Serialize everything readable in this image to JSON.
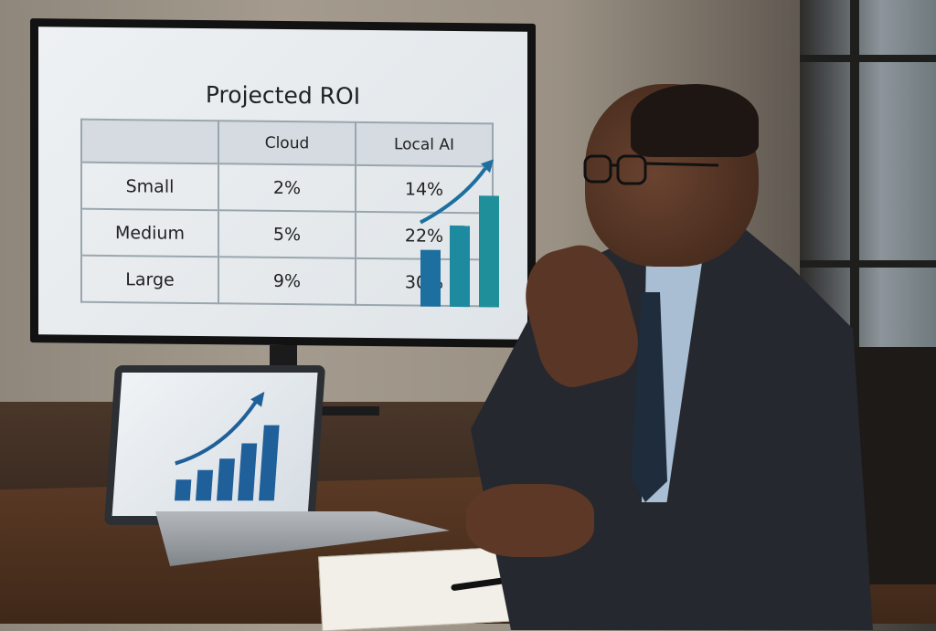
{
  "tv": {
    "title": "Projected ROI",
    "table": {
      "headers": [
        "",
        "Cloud",
        "Local AI"
      ],
      "rows": [
        {
          "label": "Small",
          "cloud": "2%",
          "local": "14%"
        },
        {
          "label": "Medium",
          "cloud": "5%",
          "local": "22%"
        },
        {
          "label": "Large",
          "cloud": "9%",
          "local": "30%"
        }
      ]
    },
    "chart_icon": "rising-bar-chart-with-arrow",
    "bar_color": "#1f7ea3"
  },
  "laptop": {
    "chart_icon": "rising-bar-chart-with-arrow",
    "bar_color": "#1f5f9a"
  }
}
